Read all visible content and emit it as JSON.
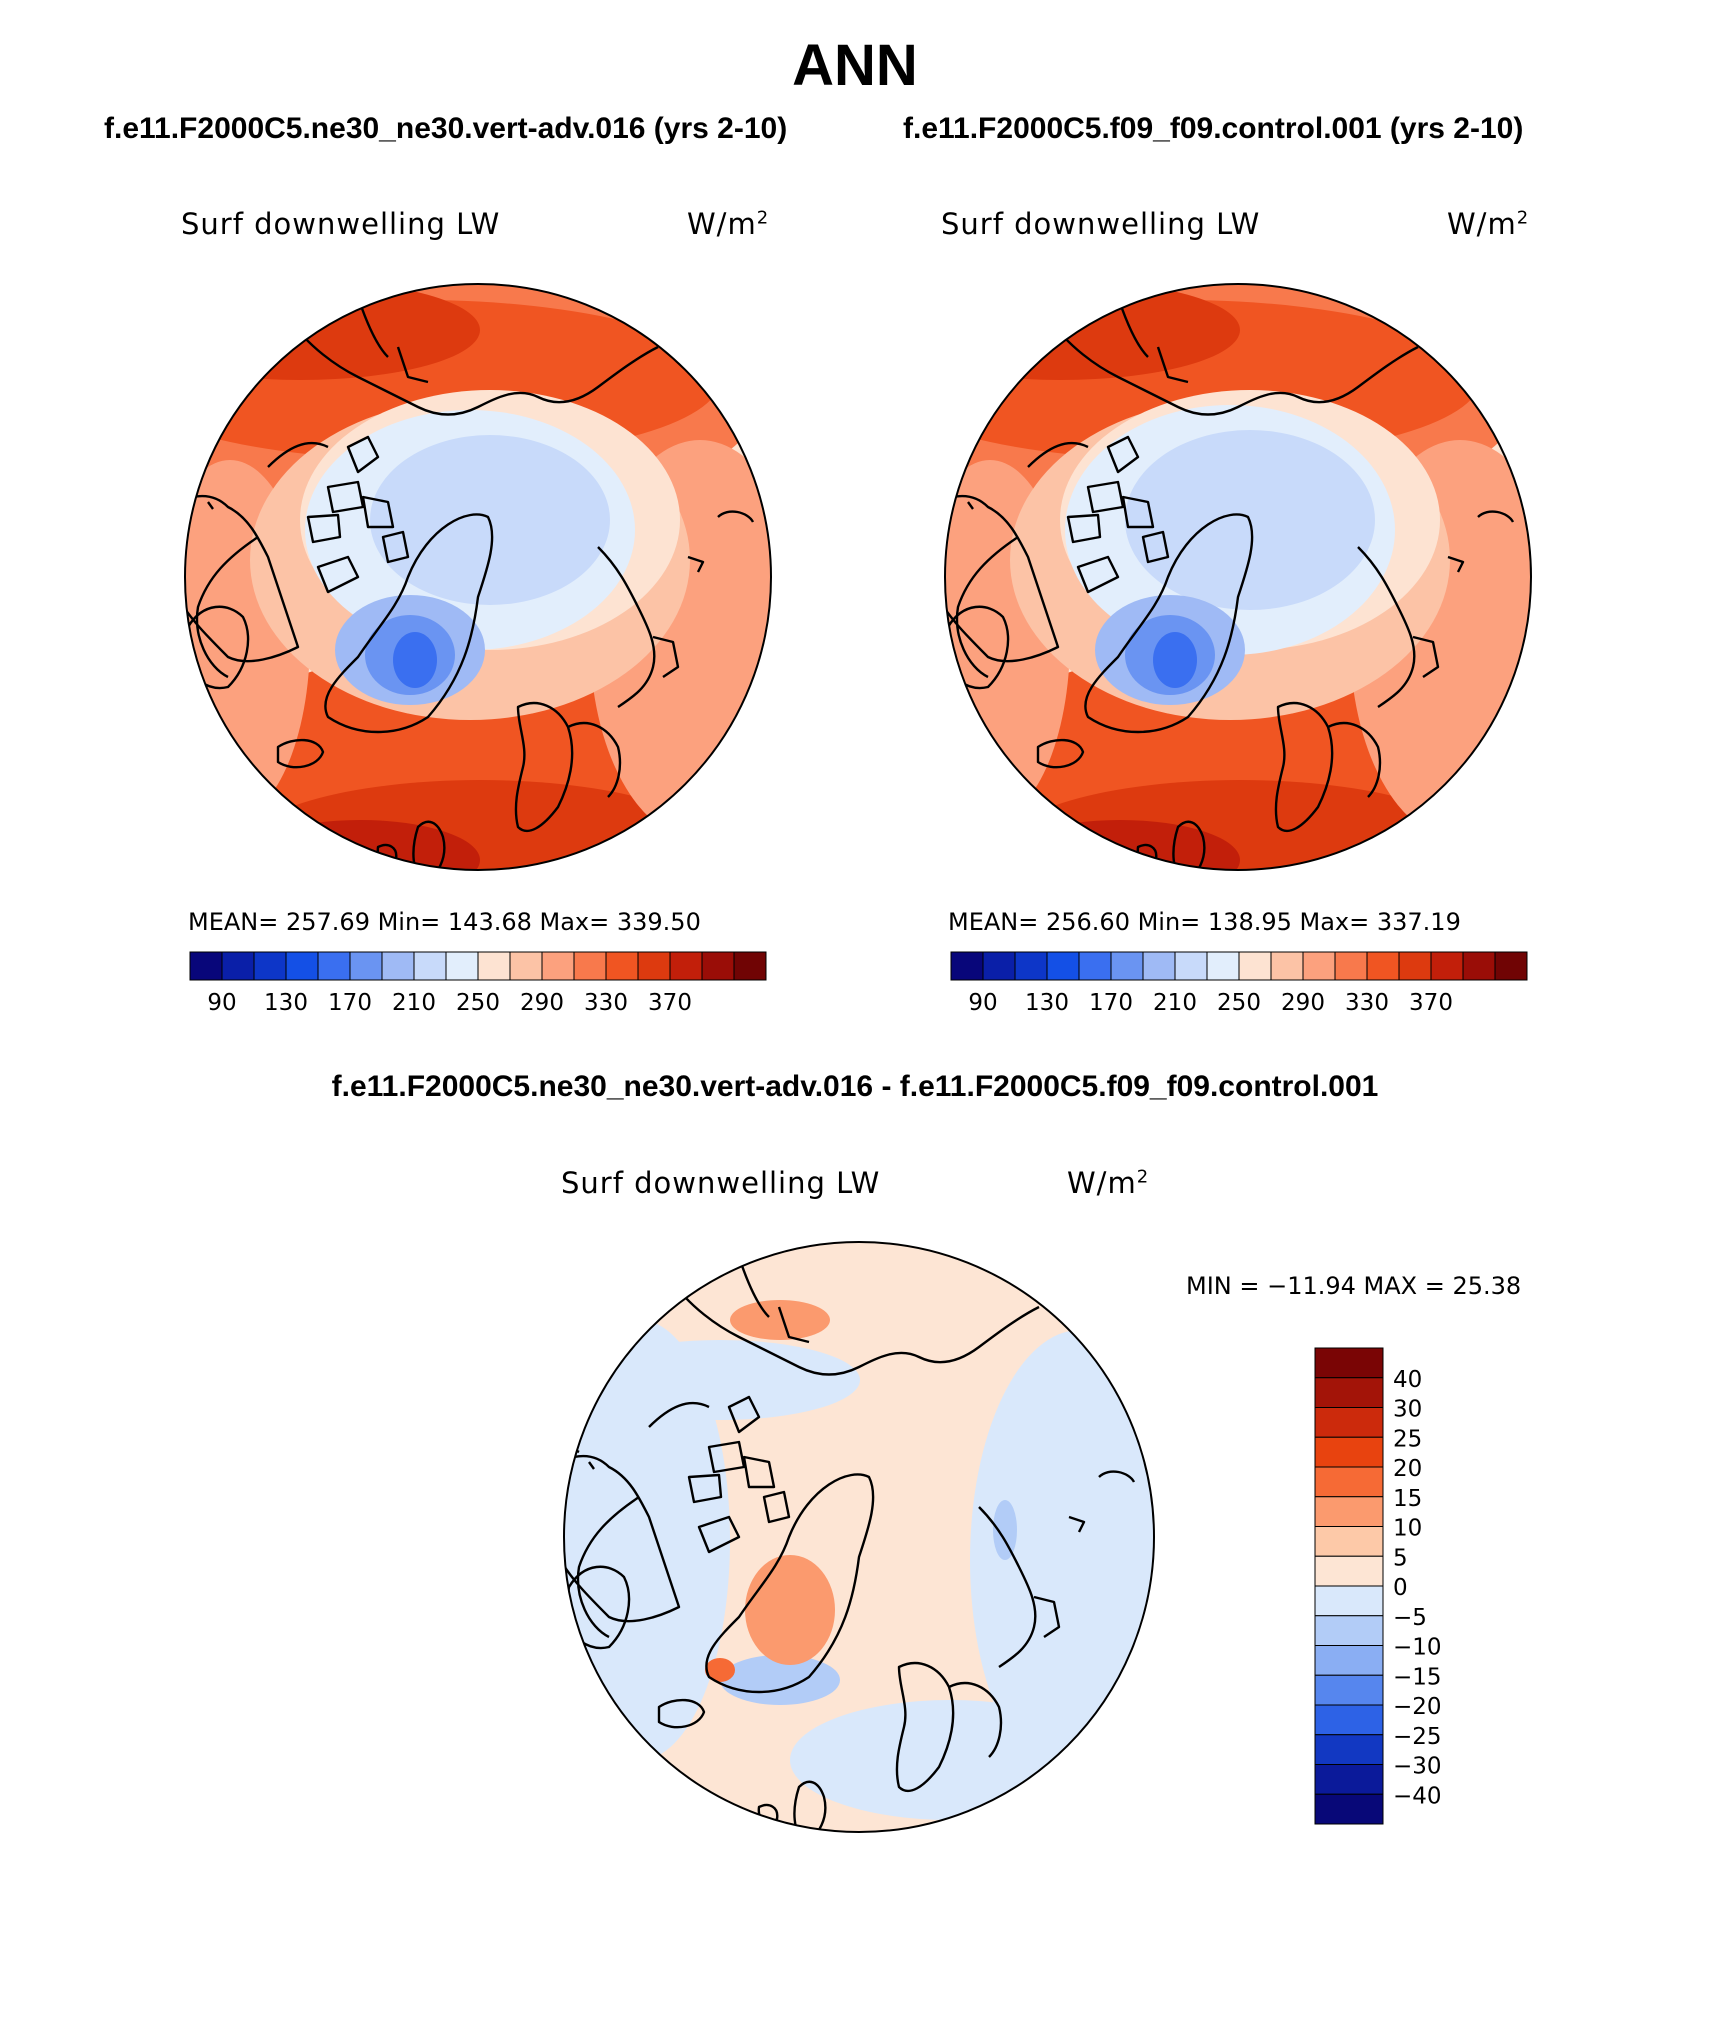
{
  "title": "ANN",
  "panels": [
    {
      "case": "f.e11.F2000C5.ne30_ne30.vert-adv.016 (yrs 2-10)",
      "variable": "Surf downwelling LW",
      "units": "W/m",
      "units_exp": "2",
      "stats": "MEAN= 257.69   Min= 143.68   Max= 339.50"
    },
    {
      "case": "f.e11.F2000C5.f09_f09.control.001 (yrs 2-10)",
      "variable": "Surf downwelling LW",
      "units": "W/m",
      "units_exp": "2",
      "stats": "MEAN= 256.60   Min= 138.95   Max= 337.19"
    }
  ],
  "difference": {
    "title": "f.e11.F2000C5.ne30_ne30.vert-adv.016 - f.e11.F2000C5.f09_f09.control.001",
    "variable": "Surf downwelling LW",
    "units": "W/m",
    "units_exp": "2",
    "minmax": "MIN = −11.94 MAX =  25.38"
  },
  "colorbar_main": {
    "labels": [
      "90",
      "130",
      "170",
      "210",
      "250",
      "290",
      "330",
      "370"
    ],
    "colors": [
      "#08067a",
      "#0a1fa8",
      "#0d36c8",
      "#1450e6",
      "#3a6ff0",
      "#6a94f2",
      "#9fbaf5",
      "#c8dafa",
      "#e2eefc",
      "#fde3d2",
      "#fcc3a6",
      "#fca17e",
      "#f8794c",
      "#f05522",
      "#dd3a0f",
      "#c21f0a",
      "#9a0d07",
      "#700404"
    ]
  },
  "colorbar_diff": {
    "labels": [
      "40",
      "30",
      "25",
      "20",
      "15",
      "10",
      "5",
      "0",
      "−5",
      "−10",
      "−15",
      "−20",
      "−25",
      "−30",
      "−40"
    ],
    "colors": [
      "#7a0505",
      "#a31408",
      "#cc2a0c",
      "#e8430f",
      "#f66a35",
      "#fb9a6e",
      "#fdc9a8",
      "#fde5d4",
      "#d9e8fb",
      "#b2ccf7",
      "#8aaef3",
      "#5686ee",
      "#2d62e6",
      "#1238c2",
      "#0b1a9a",
      "#080878"
    ]
  },
  "chart_data": [
    {
      "type": "heatmap",
      "variable": "Surf downwelling LW",
      "units": "W/m2",
      "mean": 257.69,
      "min": 143.68,
      "max": 339.5,
      "contour_levels": [
        90,
        130,
        170,
        210,
        250,
        290,
        330,
        370
      ]
    },
    {
      "type": "heatmap",
      "variable": "Surf downwelling LW",
      "units": "W/m2",
      "mean": 256.6,
      "min": 138.95,
      "max": 337.19,
      "contour_levels": [
        90,
        130,
        170,
        210,
        250,
        290,
        330,
        370
      ]
    },
    {
      "type": "heatmap",
      "variable": "Surf downwelling LW",
      "units": "W/m2",
      "min": -11.94,
      "max": 25.38,
      "contour_levels": [
        -40,
        -30,
        -25,
        -20,
        -15,
        -10,
        -5,
        0,
        5,
        10,
        15,
        20,
        25,
        30,
        40
      ]
    }
  ]
}
